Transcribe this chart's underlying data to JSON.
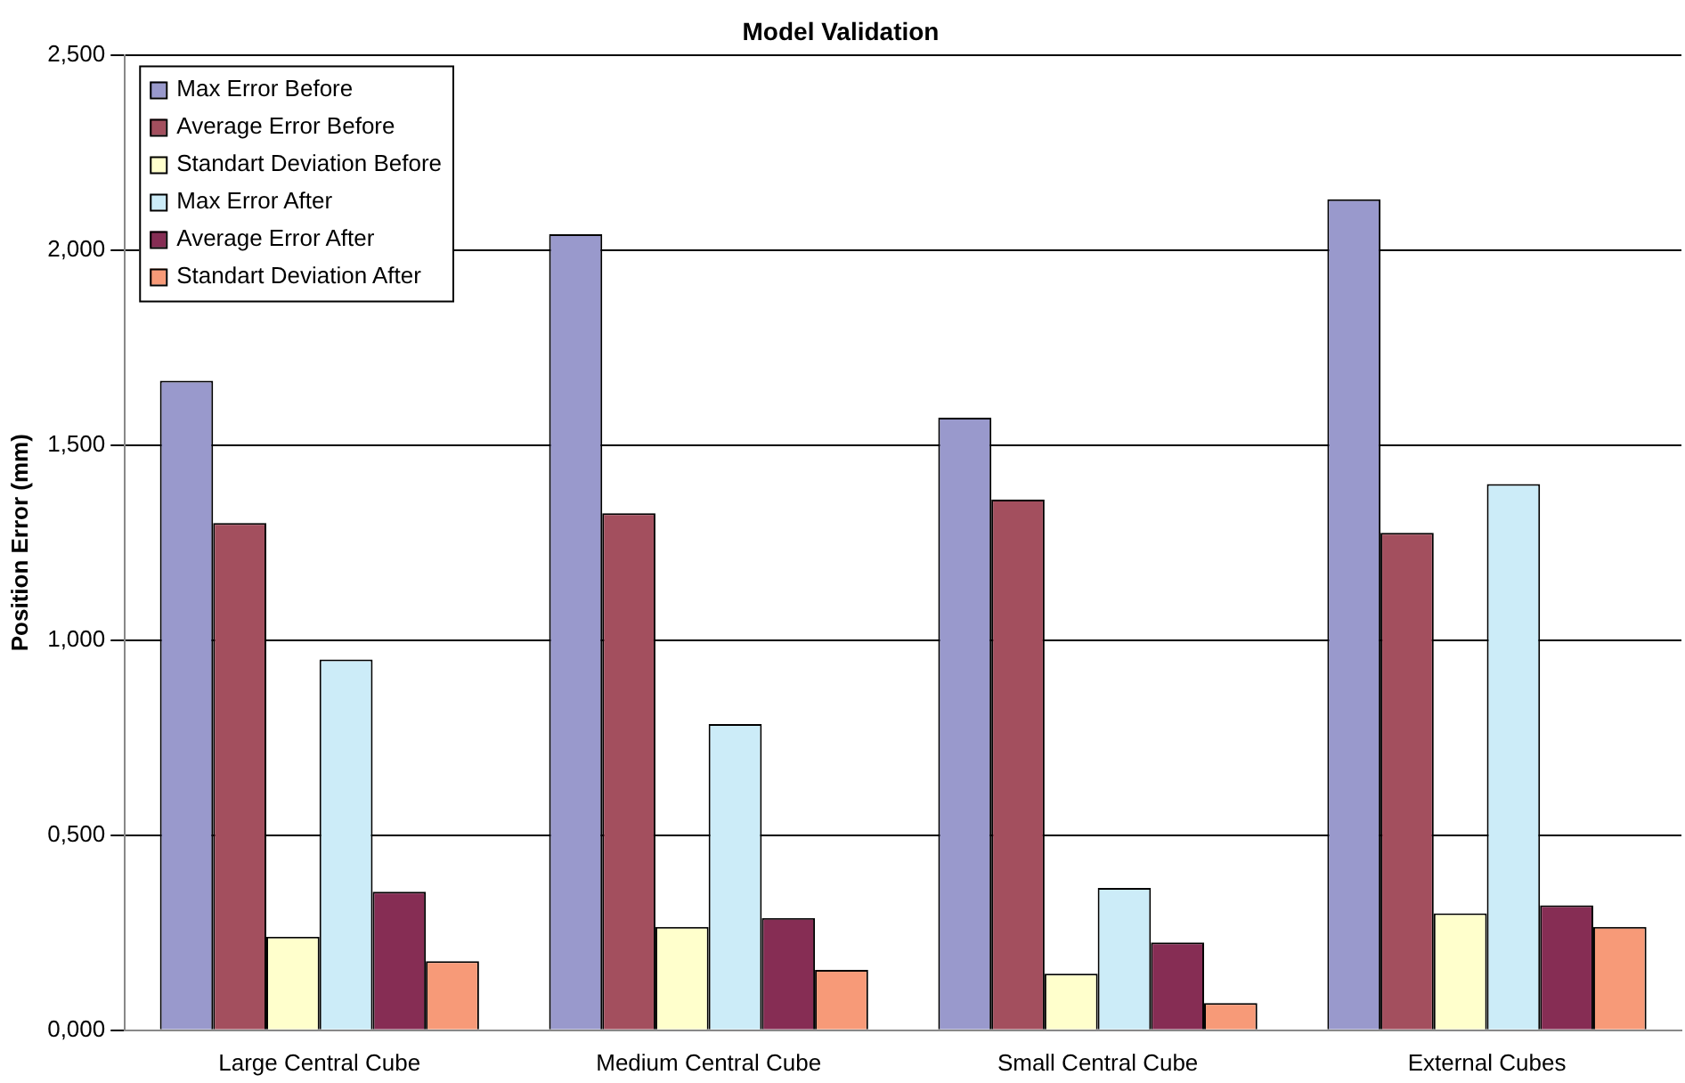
{
  "chart_data": {
    "type": "bar",
    "title": "Model Validation",
    "ylabel": "Position Error (mm)",
    "categories": [
      "Large Central Cube",
      "Medium Central Cube",
      "Small Central Cube",
      "External Cubes"
    ],
    "series": [
      {
        "name": "Max Error Before",
        "color": "#9999cc",
        "values": [
          1.665,
          2.04,
          1.57,
          2.13
        ]
      },
      {
        "name": "Average Error Before",
        "color": "#a34f5e",
        "values": [
          1.3,
          1.325,
          1.36,
          1.275
        ]
      },
      {
        "name": "Standart Deviation Before",
        "color": "#ffffcc",
        "values": [
          0.24,
          0.265,
          0.145,
          0.3
        ]
      },
      {
        "name": "Max Error After",
        "color": "#ccecf8",
        "values": [
          0.95,
          0.785,
          0.365,
          1.4
        ]
      },
      {
        "name": "Average Error After",
        "color": "#862d54",
        "values": [
          0.355,
          0.288,
          0.225,
          0.32
        ]
      },
      {
        "name": "Standart Deviation After",
        "color": "#f79a78",
        "values": [
          0.177,
          0.155,
          0.07,
          0.265
        ]
      }
    ],
    "ylim": [
      0,
      2.5
    ],
    "yticks": [
      {
        "value": 0,
        "label": "0,000"
      },
      {
        "value": 0.5,
        "label": "0,500"
      },
      {
        "value": 1,
        "label": "1,000"
      },
      {
        "value": 1.5,
        "label": "1,500"
      },
      {
        "value": 2,
        "label": "2,000"
      },
      {
        "value": 2.5,
        "label": "2,500"
      }
    ],
    "grid": "y",
    "legend": "top left"
  }
}
